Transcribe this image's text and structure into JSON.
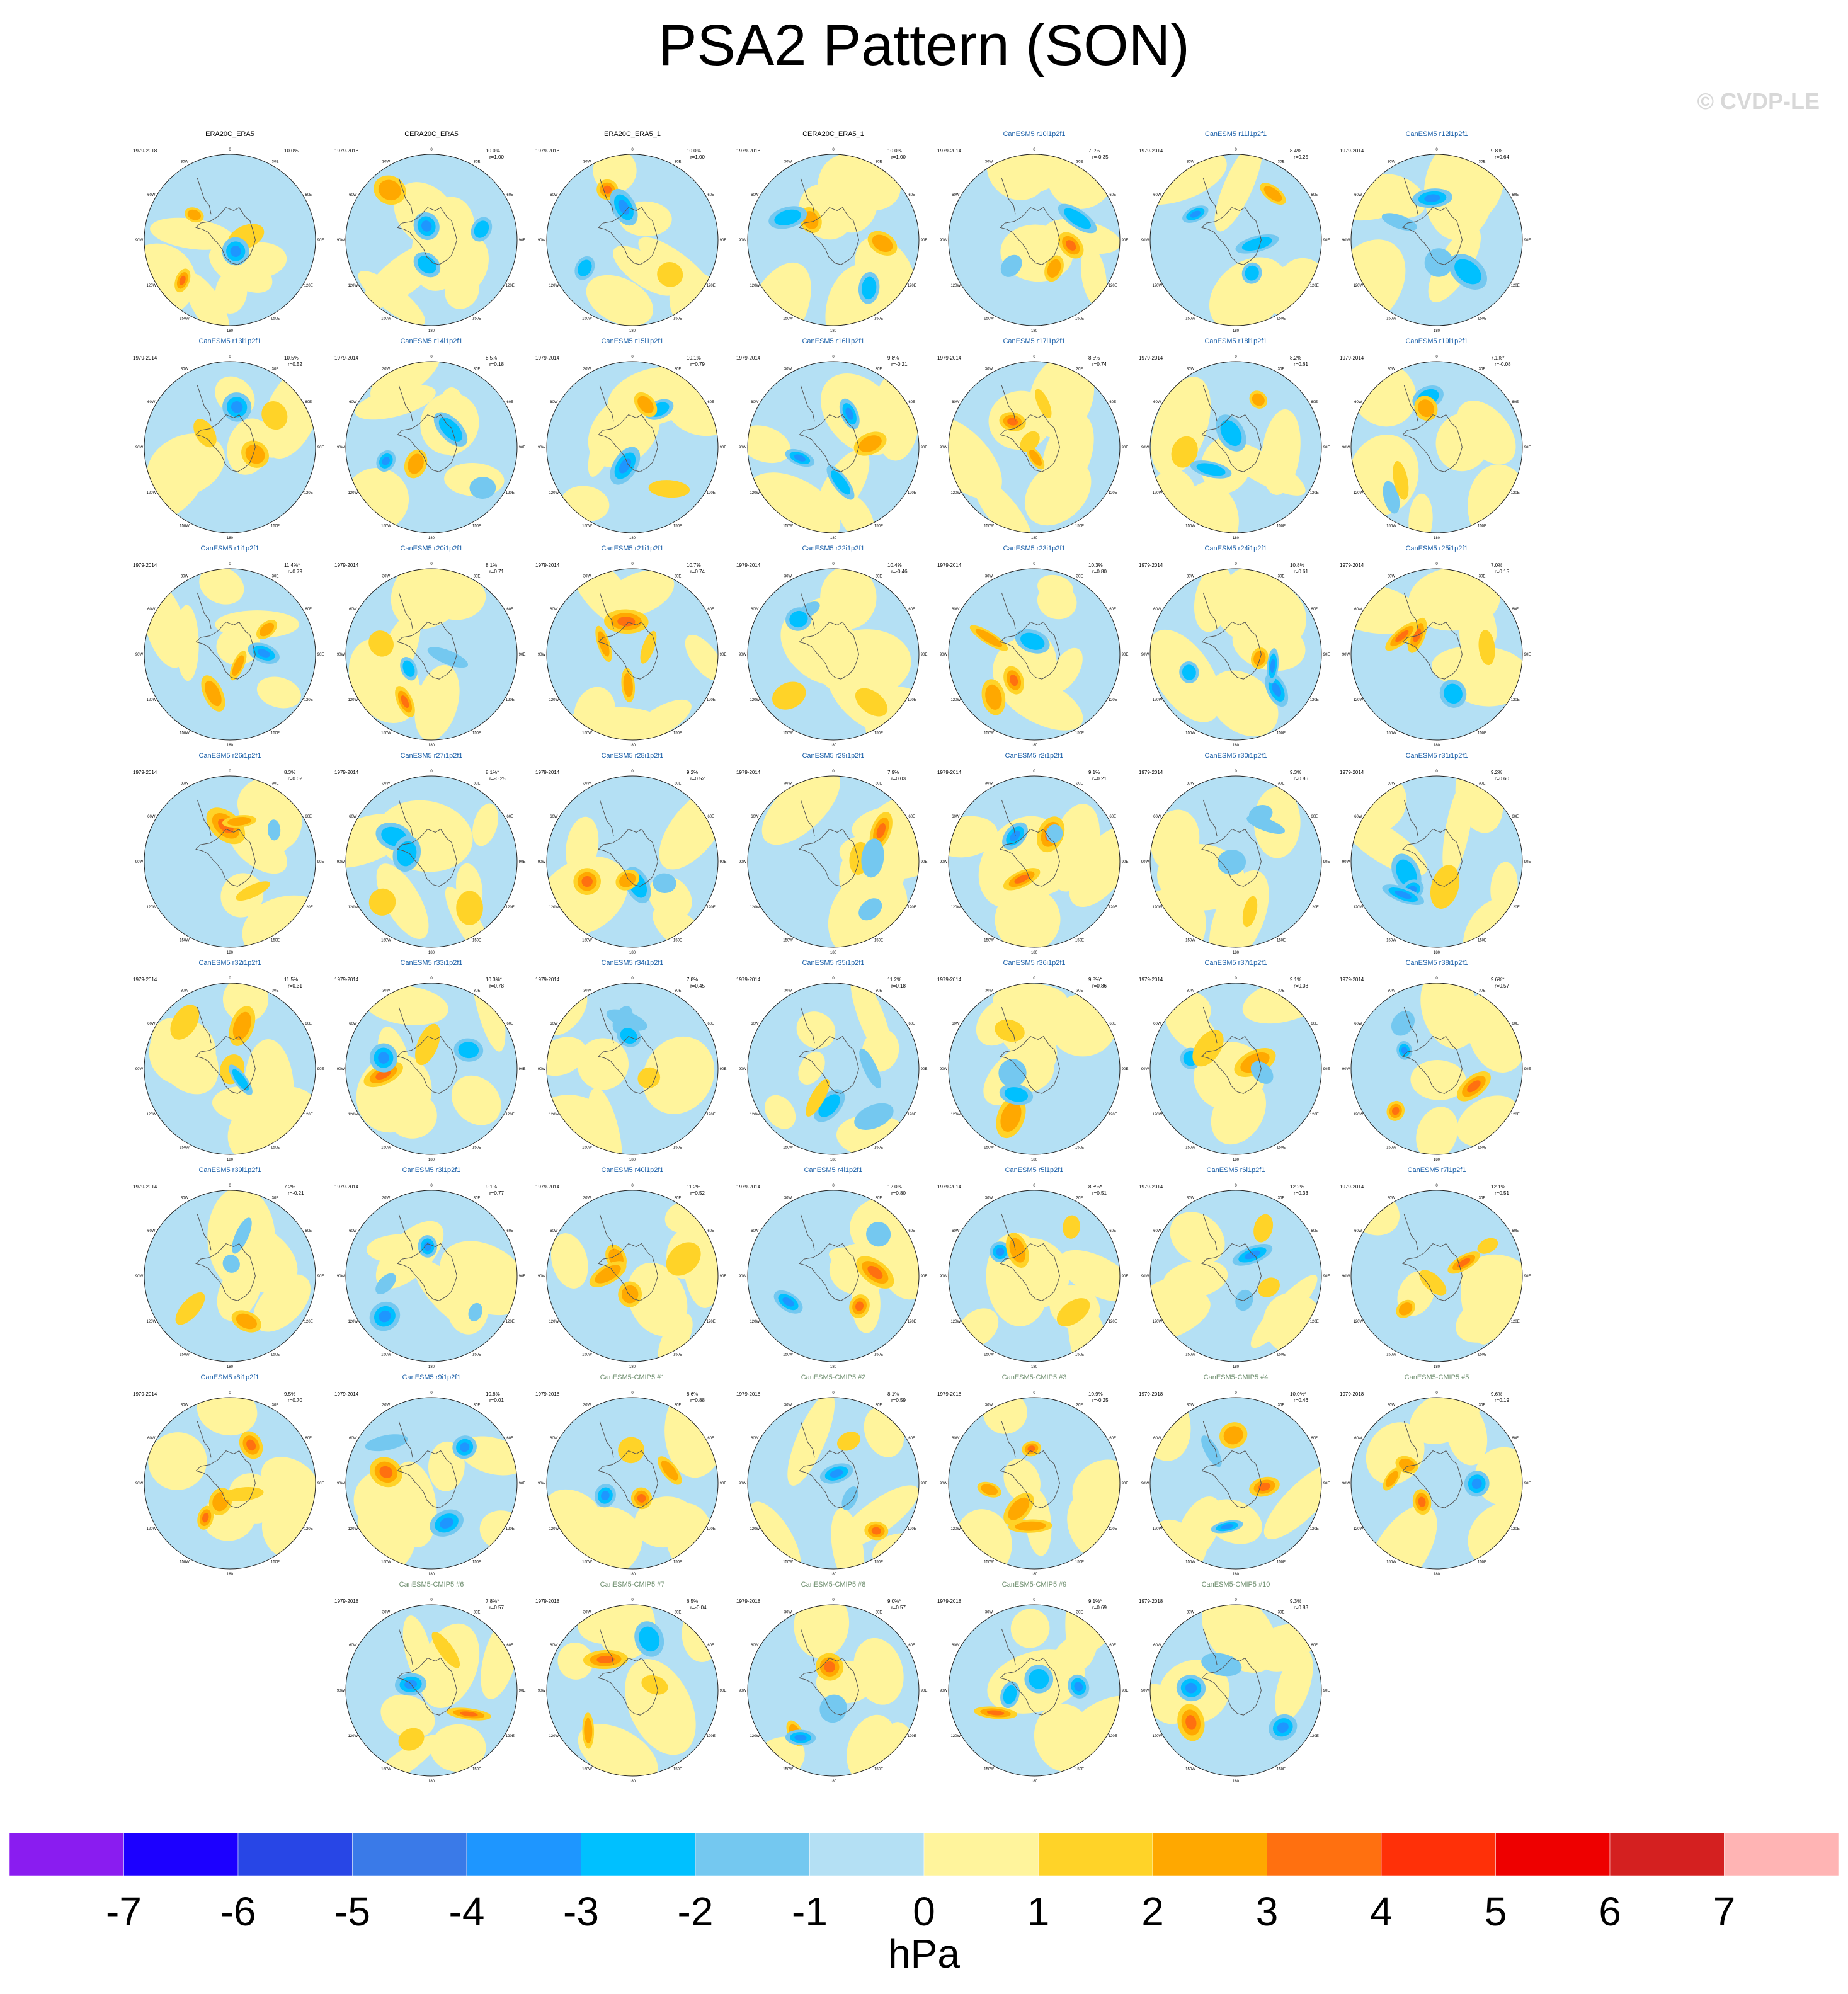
{
  "chart_data": {
    "type": "heatmap",
    "title": "PSA2 Pattern (SON)",
    "credit": "© CVDP-LE",
    "colorbar": {
      "units": "hPa",
      "labels": [
        "-7",
        "-6",
        "-5",
        "-4",
        "-3",
        "-2",
        "-1",
        "0",
        "1",
        "2",
        "3",
        "4",
        "5",
        "6",
        "7"
      ],
      "colors": [
        "#8a1cf0",
        "#1c00ff",
        "#2846e6",
        "#3a7ae8",
        "#1e96ff",
        "#00c0ff",
        "#74c8f0",
        "#b4e0f4",
        "#fff49c",
        "#ffd328",
        "#ffa800",
        "#ff7010",
        "#ff3008",
        "#ee0000",
        "#d42020",
        "#ffb4b4"
      ]
    },
    "longitude_labels": [
      "0",
      "30E",
      "60E",
      "90E",
      "120E",
      "150E",
      "180",
      "150W",
      "120W",
      "90W",
      "60W",
      "30W"
    ],
    "panels": [
      {
        "name": "ERA20C_ERA5",
        "period": "1979-2018",
        "pct": "10.0%",
        "corr": "",
        "type": "obs"
      },
      {
        "name": "CERA20C_ERA5",
        "period": "1979-2018",
        "pct": "10.0%",
        "corr": "r=1.00",
        "type": "obs"
      },
      {
        "name": "ERA20C_ERA5_1",
        "period": "1979-2018",
        "pct": "10.0%",
        "corr": "r=1.00",
        "type": "obs"
      },
      {
        "name": "CERA20C_ERA5_1",
        "period": "1979-2018",
        "pct": "10.0%",
        "corr": "r=1.00",
        "type": "obs"
      },
      {
        "name": "CanESM5 r10i1p2f1",
        "period": "1979-2014",
        "pct": "7.0%",
        "corr": "r=-0.35",
        "type": "member"
      },
      {
        "name": "CanESM5 r11i1p2f1",
        "period": "1979-2014",
        "pct": "8.4%",
        "corr": "r=0.25",
        "type": "member"
      },
      {
        "name": "CanESM5 r12i1p2f1",
        "period": "1979-2014",
        "pct": "9.8%",
        "corr": "r=0.64",
        "type": "member"
      },
      {
        "name": "CanESM5 r13i1p2f1",
        "period": "1979-2014",
        "pct": "10.5%",
        "corr": "r=0.52",
        "type": "member"
      },
      {
        "name": "CanESM5 r14i1p2f1",
        "period": "1979-2014",
        "pct": "8.5%",
        "corr": "r=0.18",
        "type": "member"
      },
      {
        "name": "CanESM5 r15i1p2f1",
        "period": "1979-2014",
        "pct": "10.1%",
        "corr": "r=0.79",
        "type": "member"
      },
      {
        "name": "CanESM5 r16i1p2f1",
        "period": "1979-2014",
        "pct": "9.8%",
        "corr": "r=-0.21",
        "type": "member"
      },
      {
        "name": "CanESM5 r17i1p2f1",
        "period": "1979-2014",
        "pct": "8.5%",
        "corr": "r=0.74",
        "type": "member"
      },
      {
        "name": "CanESM5 r18i1p2f1",
        "period": "1979-2014",
        "pct": "8.2%",
        "corr": "r=0.61",
        "type": "member"
      },
      {
        "name": "CanESM5 r19i1p2f1",
        "period": "1979-2014",
        "pct": "7.1%*",
        "corr": "r=-0.08",
        "type": "member"
      },
      {
        "name": "CanESM5 r1i1p2f1",
        "period": "1979-2014",
        "pct": "11.4%*",
        "corr": "r=0.79",
        "type": "member"
      },
      {
        "name": "CanESM5 r20i1p2f1",
        "period": "1979-2014",
        "pct": "8.1%",
        "corr": "r=0.71",
        "type": "member"
      },
      {
        "name": "CanESM5 r21i1p2f1",
        "period": "1979-2014",
        "pct": "10.7%",
        "corr": "r=0.74",
        "type": "member"
      },
      {
        "name": "CanESM5 r22i1p2f1",
        "period": "1979-2014",
        "pct": "10.4%",
        "corr": "r=-0.46",
        "type": "member"
      },
      {
        "name": "CanESM5 r23i1p2f1",
        "period": "1979-2014",
        "pct": "10.3%",
        "corr": "r=0.80",
        "type": "member"
      },
      {
        "name": "CanESM5 r24i1p2f1",
        "period": "1979-2014",
        "pct": "10.8%",
        "corr": "r=0.61",
        "type": "member"
      },
      {
        "name": "CanESM5 r25i1p2f1",
        "period": "1979-2014",
        "pct": "7.0%",
        "corr": "r=0.15",
        "type": "member"
      },
      {
        "name": "CanESM5 r26i1p2f1",
        "period": "1979-2014",
        "pct": "8.3%",
        "corr": "r=0.02",
        "type": "member"
      },
      {
        "name": "CanESM5 r27i1p2f1",
        "period": "1979-2014",
        "pct": "8.1%*",
        "corr": "r=-0.25",
        "type": "member"
      },
      {
        "name": "CanESM5 r28i1p2f1",
        "period": "1979-2014",
        "pct": "9.2%",
        "corr": "r=0.52",
        "type": "member"
      },
      {
        "name": "CanESM5 r29i1p2f1",
        "period": "1979-2014",
        "pct": "7.9%",
        "corr": "r=0.03",
        "type": "member"
      },
      {
        "name": "CanESM5 r2i1p2f1",
        "period": "1979-2014",
        "pct": "9.1%",
        "corr": "r=0.21",
        "type": "member"
      },
      {
        "name": "CanESM5 r30i1p2f1",
        "period": "1979-2014",
        "pct": "9.3%",
        "corr": "r=0.86",
        "type": "member"
      },
      {
        "name": "CanESM5 r31i1p2f1",
        "period": "1979-2014",
        "pct": "9.2%",
        "corr": "r=0.60",
        "type": "member"
      },
      {
        "name": "CanESM5 r32i1p2f1",
        "period": "1979-2014",
        "pct": "11.5%",
        "corr": "r=0.31",
        "type": "member"
      },
      {
        "name": "CanESM5 r33i1p2f1",
        "period": "1979-2014",
        "pct": "10.3%*",
        "corr": "r=0.78",
        "type": "member"
      },
      {
        "name": "CanESM5 r34i1p2f1",
        "period": "1979-2014",
        "pct": "7.8%",
        "corr": "r=0.45",
        "type": "member"
      },
      {
        "name": "CanESM5 r35i1p2f1",
        "period": "1979-2014",
        "pct": "11.2%",
        "corr": "r=0.18",
        "type": "member"
      },
      {
        "name": "CanESM5 r36i1p2f1",
        "period": "1979-2014",
        "pct": "9.8%*",
        "corr": "r=0.86",
        "type": "member"
      },
      {
        "name": "CanESM5 r37i1p2f1",
        "period": "1979-2014",
        "pct": "9.1%",
        "corr": "r=0.08",
        "type": "member"
      },
      {
        "name": "CanESM5 r38i1p2f1",
        "period": "1979-2014",
        "pct": "9.6%*",
        "corr": "r=0.57",
        "type": "member"
      },
      {
        "name": "CanESM5 r39i1p2f1",
        "period": "1979-2014",
        "pct": "7.2%",
        "corr": "r=-0.21",
        "type": "member"
      },
      {
        "name": "CanESM5 r3i1p2f1",
        "period": "1979-2014",
        "pct": "9.1%",
        "corr": "r=0.77",
        "type": "member"
      },
      {
        "name": "CanESM5 r40i1p2f1",
        "period": "1979-2014",
        "pct": "11.2%",
        "corr": "r=0.52",
        "type": "member"
      },
      {
        "name": "CanESM5 r4i1p2f1",
        "period": "1979-2014",
        "pct": "12.0%",
        "corr": "r=0.80",
        "type": "member"
      },
      {
        "name": "CanESM5 r5i1p2f1",
        "period": "1979-2014",
        "pct": "8.8%*",
        "corr": "r=0.51",
        "type": "member"
      },
      {
        "name": "CanESM5 r6i1p2f1",
        "period": "1979-2014",
        "pct": "12.2%",
        "corr": "r=0.33",
        "type": "member"
      },
      {
        "name": "CanESM5 r7i1p2f1",
        "period": "1979-2014",
        "pct": "12.1%",
        "corr": "r=0.51",
        "type": "member"
      },
      {
        "name": "CanESM5 r8i1p2f1",
        "period": "1979-2014",
        "pct": "9.5%",
        "corr": "r=0.70",
        "type": "member"
      },
      {
        "name": "CanESM5 r9i1p2f1",
        "period": "1979-2014",
        "pct": "10.8%",
        "corr": "r=0.01",
        "type": "member"
      },
      {
        "name": "CanESM5-CMIP5 #1",
        "period": "1979-2018",
        "pct": "8.6%",
        "corr": "r=0.88",
        "type": "cmip5"
      },
      {
        "name": "CanESM5-CMIP5 #2",
        "period": "1979-2018",
        "pct": "8.1%",
        "corr": "r=0.59",
        "type": "cmip5"
      },
      {
        "name": "CanESM5-CMIP5 #3",
        "period": "1979-2018",
        "pct": "10.9%",
        "corr": "r=-0.25",
        "type": "cmip5"
      },
      {
        "name": "CanESM5-CMIP5 #4",
        "period": "1979-2018",
        "pct": "10.0%*",
        "corr": "r=0.46",
        "type": "cmip5"
      },
      {
        "name": "CanESM5-CMIP5 #5",
        "period": "1979-2018",
        "pct": "9.6%",
        "corr": "r=0.19",
        "type": "cmip5"
      },
      {
        "name": "CanESM5-CMIP5 #6",
        "period": "1979-2018",
        "pct": "7.8%*",
        "corr": "r=0.57",
        "type": "cmip5"
      },
      {
        "name": "CanESM5-CMIP5 #7",
        "period": "1979-2018",
        "pct": "6.5%",
        "corr": "r=-0.04",
        "type": "cmip5"
      },
      {
        "name": "CanESM5-CMIP5 #8",
        "period": "1979-2018",
        "pct": "9.0%*",
        "corr": "r=0.57",
        "type": "cmip5"
      },
      {
        "name": "CanESM5-CMIP5 #9",
        "period": "1979-2018",
        "pct": "9.1%*",
        "corr": "r=0.69",
        "type": "cmip5"
      },
      {
        "name": "CanESM5-CMIP5 #10",
        "period": "1979-2018",
        "pct": "9.3%",
        "corr": "r=0.83",
        "type": "cmip5"
      }
    ],
    "name_colors": {
      "obs": "#000000",
      "member": "#1a5fa8",
      "cmip5": "#6f8f6f"
    }
  }
}
